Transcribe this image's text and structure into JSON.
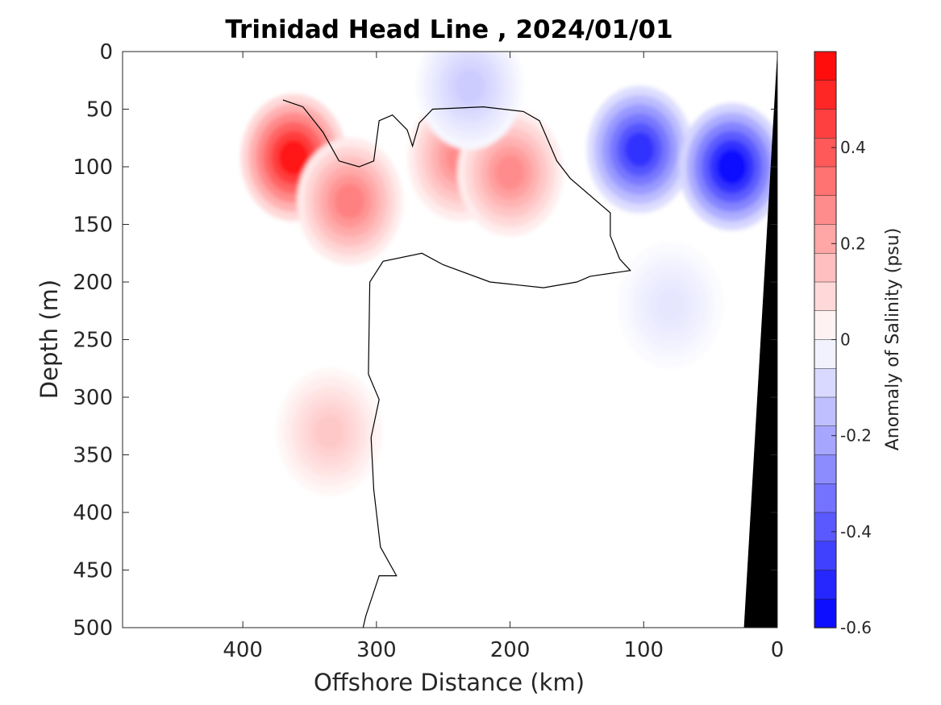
{
  "chart_data": {
    "type": "heatmap",
    "title": "Trinidad Head Line , 2024/01/01",
    "xlabel": "Offshore Distance (km)",
    "ylabel": "Depth (m)",
    "xlim": [
      490,
      0
    ],
    "ylim": [
      0,
      500
    ],
    "x_reversed": true,
    "y_reversed": true,
    "x_ticks": [
      400,
      300,
      200,
      100,
      0
    ],
    "y_ticks": [
      0,
      50,
      100,
      150,
      200,
      250,
      300,
      350,
      400,
      450,
      500
    ],
    "colorbar": {
      "label": "Anomaly of Salinity (psu)",
      "range": [
        -0.6,
        0.6
      ],
      "ticks": [
        0.4,
        0.2,
        0,
        -0.2,
        -0.4,
        -0.6
      ],
      "tick_labels": [
        "0.4",
        "0.2",
        "0",
        "-0.2",
        "-0.4",
        "-0.6"
      ],
      "levels": 20,
      "neg_color": "#0000ff",
      "zero_color": "#ffffff",
      "pos_color": "#ff0000"
    },
    "data_extent_km": [
      370,
      12
    ],
    "anomaly_features": [
      {
        "sign": "positive",
        "center_km": 362,
        "center_depth_m": 92,
        "peak_psu": 0.55
      },
      {
        "sign": "positive",
        "center_km": 320,
        "center_depth_m": 130,
        "peak_psu": 0.3
      },
      {
        "sign": "positive",
        "center_km": 237,
        "center_depth_m": 92,
        "peak_psu": 0.27
      },
      {
        "sign": "positive",
        "center_km": 200,
        "center_depth_m": 105,
        "peak_psu": 0.27
      },
      {
        "sign": "positive",
        "center_km": 335,
        "center_depth_m": 330,
        "peak_psu": 0.13
      },
      {
        "sign": "negative",
        "center_km": 103,
        "center_depth_m": 85,
        "peak_psu": -0.48
      },
      {
        "sign": "negative",
        "center_km": 34,
        "center_depth_m": 100,
        "peak_psu": -0.58
      },
      {
        "sign": "negative",
        "center_km": 230,
        "center_depth_m": 30,
        "peak_psu": -0.12
      },
      {
        "sign": "negative",
        "center_km": 80,
        "center_depth_m": 220,
        "peak_psu": -0.06
      }
    ],
    "zero_contour_km_depth": [
      [
        370,
        42
      ],
      [
        355,
        48
      ],
      [
        340,
        70
      ],
      [
        328,
        95
      ],
      [
        313,
        100
      ],
      [
        302,
        95
      ],
      [
        298,
        60
      ],
      [
        288,
        55
      ],
      [
        277,
        68
      ],
      [
        273,
        82
      ],
      [
        268,
        62
      ],
      [
        258,
        50
      ],
      [
        220,
        48
      ],
      [
        190,
        52
      ],
      [
        178,
        60
      ],
      [
        165,
        95
      ],
      [
        155,
        110
      ],
      [
        125,
        140
      ],
      [
        125,
        160
      ],
      [
        118,
        180
      ],
      [
        110,
        190
      ],
      [
        140,
        195
      ],
      [
        150,
        200
      ],
      [
        175,
        205
      ],
      [
        215,
        200
      ],
      [
        250,
        185
      ],
      [
        266,
        175
      ],
      [
        295,
        182
      ],
      [
        305,
        200
      ],
      [
        306,
        280
      ],
      [
        298,
        302
      ],
      [
        304,
        335
      ],
      [
        302,
        380
      ],
      [
        297,
        430
      ],
      [
        285,
        455
      ],
      [
        298,
        455
      ],
      [
        308,
        490
      ],
      [
        310,
        500
      ]
    ],
    "bottom_bathymetry": [
      [
        0,
        0
      ],
      [
        25,
        500
      ]
    ]
  }
}
